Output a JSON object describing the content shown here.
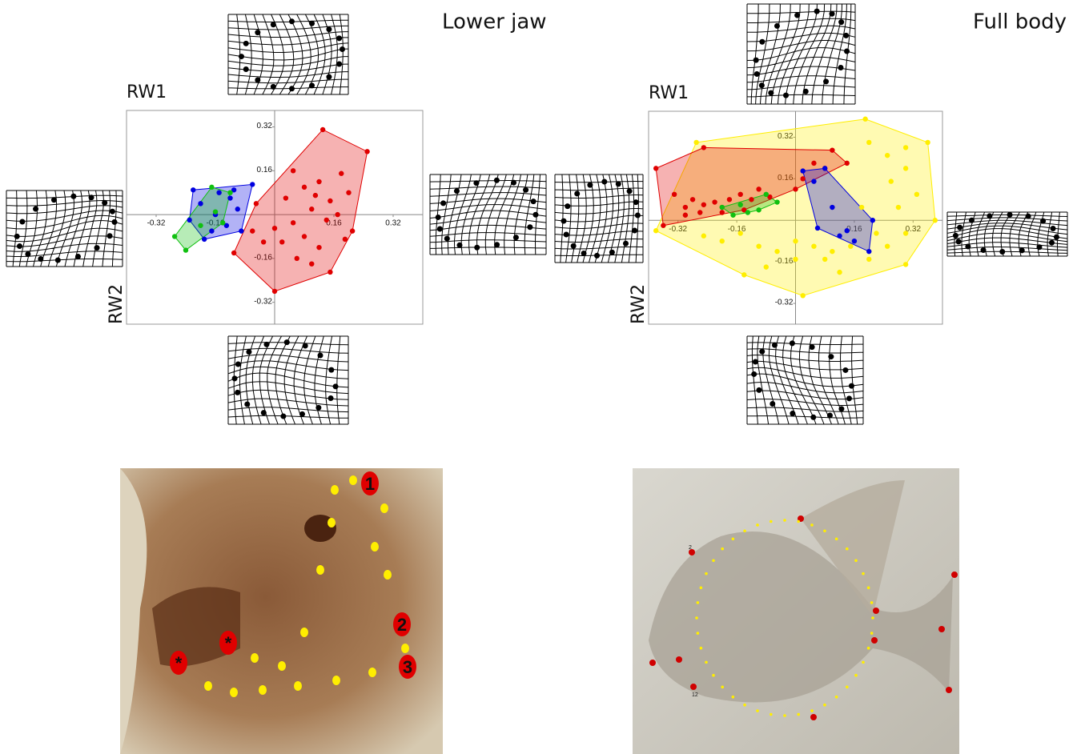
{
  "chart_data": [
    {
      "type": "scatter",
      "title": "Lower jaw",
      "xlabel": "RW1",
      "ylabel": "RW2",
      "xlim": [
        -0.4,
        0.4
      ],
      "ylim": [
        -0.4,
        0.38
      ],
      "xticks": [
        -0.32,
        -0.16,
        0.16,
        0.32
      ],
      "yticks": [
        -0.32,
        -0.16,
        0.16,
        0.32
      ],
      "grid": false,
      "series": [
        {
          "color": "#e00000",
          "x": [
            0.13,
            0.25,
            0.21,
            0.15,
            0.0,
            -0.11,
            -0.05,
            0.05,
            0.08,
            0.12,
            0.18,
            0.2,
            0.15,
            0.1,
            0.05,
            0.0,
            0.02,
            0.08,
            0.12,
            0.14,
            0.17,
            0.06,
            0.1,
            -0.03,
            -0.06,
            0.03,
            0.19,
            0.11
          ],
          "values": [
            0.31,
            0.23,
            -0.06,
            -0.21,
            -0.28,
            -0.14,
            0.04,
            0.16,
            0.1,
            0.12,
            0.15,
            0.08,
            0.05,
            0.02,
            -0.03,
            -0.05,
            -0.1,
            -0.08,
            -0.12,
            -0.02,
            0.0,
            -0.16,
            -0.18,
            -0.1,
            -0.06,
            0.06,
            -0.09,
            0.07
          ]
        },
        {
          "color": "#0000e0",
          "x": [
            -0.22,
            -0.06,
            -0.09,
            -0.19,
            -0.23,
            -0.15,
            -0.12,
            -0.1,
            -0.16,
            -0.13,
            -0.17,
            -0.11,
            -0.2
          ],
          "values": [
            0.09,
            0.11,
            -0.06,
            -0.09,
            -0.02,
            0.08,
            0.06,
            0.02,
            0.0,
            -0.04,
            -0.06,
            0.09,
            0.04
          ]
        },
        {
          "color": "#10c010",
          "x": [
            -0.17,
            -0.12,
            -0.14,
            -0.24,
            -0.27,
            -0.2,
            -0.16
          ],
          "values": [
            0.1,
            0.08,
            -0.03,
            -0.13,
            -0.08,
            -0.04,
            0.01
          ]
        }
      ]
    },
    {
      "type": "scatter",
      "title": "Full body",
      "xlabel": "RW1",
      "ylabel": "RW2",
      "xlim": [
        -0.4,
        0.4
      ],
      "ylim": [
        -0.4,
        0.42
      ],
      "xticks": [
        -0.32,
        -0.16,
        0.16,
        0.32
      ],
      "yticks": [
        -0.32,
        -0.16,
        0.16,
        0.32
      ],
      "grid": false,
      "series": [
        {
          "color": "#ffee00",
          "x": [
            -0.27,
            0.19,
            0.36,
            0.38,
            0.3,
            0.02,
            -0.14,
            -0.38,
            0.2,
            0.25,
            0.3,
            0.33,
            0.28,
            0.22,
            0.15,
            0.1,
            0.05,
            0.0,
            -0.05,
            -0.1,
            -0.15,
            -0.2,
            -0.25,
            0.08,
            0.12,
            0.2,
            0.25,
            0.3,
            0.0,
            -0.08,
            0.18,
            0.26,
            0.3
          ],
          "values": [
            0.3,
            0.39,
            0.3,
            0.0,
            -0.17,
            -0.29,
            -0.21,
            -0.04,
            0.3,
            0.25,
            0.2,
            0.1,
            0.05,
            -0.05,
            -0.1,
            -0.12,
            -0.1,
            -0.08,
            -0.12,
            -0.1,
            -0.05,
            -0.08,
            -0.06,
            -0.15,
            -0.2,
            -0.15,
            -0.1,
            -0.05,
            -0.15,
            -0.18,
            0.05,
            0.15,
            0.28
          ]
        },
        {
          "color": "#e00000",
          "x": [
            -0.38,
            -0.25,
            0.1,
            0.14,
            -0.07,
            -0.2,
            -0.36,
            -0.3,
            -0.28,
            -0.25,
            -0.22,
            -0.18,
            -0.15,
            -0.12,
            -0.3,
            -0.26,
            -0.2,
            -0.1,
            0.02,
            0.08,
            -0.33,
            -0.14,
            0.0,
            0.05
          ],
          "values": [
            0.2,
            0.28,
            0.27,
            0.22,
            0.09,
            0.03,
            -0.02,
            0.05,
            0.08,
            0.06,
            0.07,
            0.08,
            0.1,
            0.08,
            0.02,
            0.03,
            0.05,
            0.12,
            0.16,
            0.2,
            0.1,
            0.04,
            0.12,
            0.22
          ]
        },
        {
          "color": "#0000e0",
          "x": [
            0.02,
            0.08,
            0.21,
            0.2,
            0.12,
            0.06,
            0.1,
            0.14,
            0.16,
            0.05
          ],
          "values": [
            0.19,
            0.2,
            0.0,
            -0.12,
            -0.06,
            -0.03,
            0.05,
            -0.04,
            -0.08,
            0.15
          ]
        },
        {
          "color": "#10c010",
          "x": [
            -0.2,
            -0.15,
            -0.1,
            -0.13,
            -0.08,
            -0.05,
            -0.17
          ],
          "values": [
            0.05,
            0.06,
            0.04,
            0.03,
            0.1,
            0.07,
            0.02
          ]
        }
      ]
    }
  ],
  "photos": [
    {
      "labels": [
        "1",
        "2",
        "3",
        "*",
        "*"
      ]
    },
    {
      "labels": [
        "2",
        "12"
      ]
    }
  ]
}
